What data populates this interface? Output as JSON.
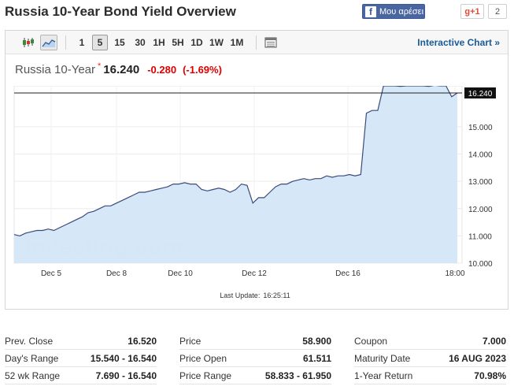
{
  "page": {
    "title": "Russia 10-Year Bond Yield Overview",
    "facebook_like": "Μου αρέσει",
    "gplus_label": "g+1",
    "gplus_count": "2"
  },
  "toolbar": {
    "timeframes": [
      "1",
      "5",
      "15",
      "30",
      "1H",
      "5H",
      "1D",
      "1W",
      "1M"
    ],
    "active_timeframe": "5",
    "interactive_chart": "Interactive Chart »"
  },
  "quote": {
    "name": "Russia 10-Year",
    "marker": "*",
    "price": "16.240",
    "change": "-0.280",
    "change_pct": "(-1.69%)"
  },
  "chart_data": {
    "type": "area",
    "watermark": "Investing.com",
    "x_tick_labels": [
      "Dec 5",
      "Dec 8",
      "Dec 10",
      "Dec 12",
      "Dec 16",
      "18:00"
    ],
    "y_tick_labels": [
      "10.000",
      "11.000",
      "12.000",
      "13.000",
      "14.000",
      "15.000"
    ],
    "ylim": [
      10.0,
      16.5
    ],
    "current_price_label": "16.240",
    "prev_close_reference": 16.52,
    "grid": true,
    "series": [
      {
        "values": [
          11.05,
          11.0,
          11.1,
          11.15,
          11.2,
          11.2,
          11.25,
          11.2,
          11.3,
          11.4,
          11.5,
          11.6,
          11.7,
          11.85,
          11.9,
          12.0,
          12.1,
          12.1,
          12.2,
          12.3,
          12.4,
          12.5,
          12.6,
          12.6,
          12.65,
          12.7,
          12.75,
          12.8,
          12.9,
          12.9,
          12.95,
          12.9,
          12.9,
          12.7,
          12.65,
          12.7,
          12.75,
          12.7,
          12.6,
          12.7,
          12.9,
          12.85,
          12.2,
          12.4,
          12.4,
          12.6,
          12.8,
          12.9,
          12.9,
          13.0,
          13.05,
          13.1,
          13.05,
          13.1,
          13.1,
          13.2,
          13.15,
          13.2,
          13.2,
          13.25,
          13.2,
          13.25,
          15.5,
          15.6,
          15.6,
          16.5,
          16.5,
          16.5,
          16.48,
          16.5,
          16.5,
          16.5,
          16.5,
          16.48,
          16.52,
          16.5,
          16.5,
          16.1,
          16.24
        ],
        "color": "#3a4a7a",
        "fill": "#d4e6f8"
      }
    ]
  },
  "last_update": {
    "label": "Last Update:",
    "time": "16:25:11"
  },
  "stats": {
    "col1": [
      {
        "label": "Prev. Close",
        "value": "16.520"
      },
      {
        "label": "Day's Range",
        "value": "15.540 - 16.540"
      },
      {
        "label": "52 wk Range",
        "value": "7.690 - 16.540"
      }
    ],
    "col2": [
      {
        "label": "Price",
        "value": "58.900"
      },
      {
        "label": "Price Open",
        "value": "61.511"
      },
      {
        "label": "Price Range",
        "value": "58.833 - 61.950"
      }
    ],
    "col3": [
      {
        "label": "Coupon",
        "value": "7.000"
      },
      {
        "label": "Maturity Date",
        "value": "16 AUG 2023"
      },
      {
        "label": "1-Year Return",
        "value": "70.98%"
      }
    ]
  },
  "colors": {
    "negative": "#dd0000",
    "link": "#1a5a96",
    "area_fill": "#d4e6f8",
    "line": "#3a4a7a",
    "reference_line": "#a00000"
  }
}
